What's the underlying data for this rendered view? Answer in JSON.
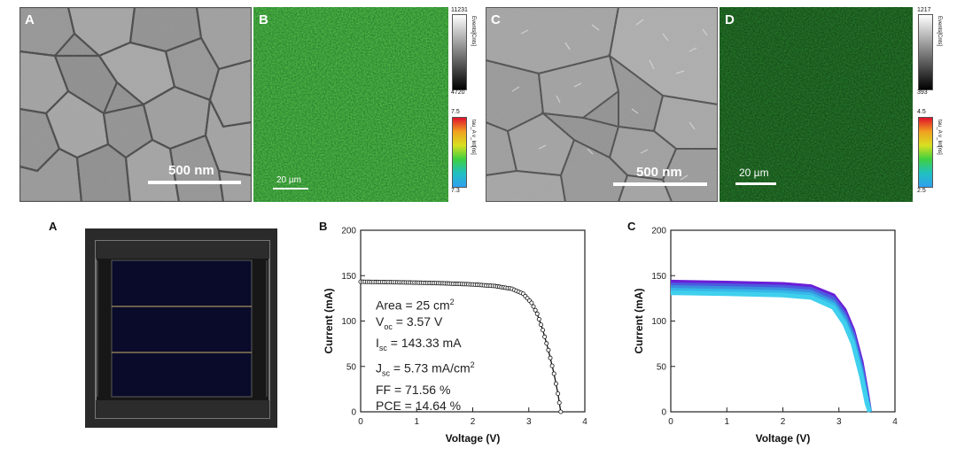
{
  "top": {
    "panels": [
      {
        "label": "A",
        "scale": "500 nm"
      },
      {
        "label": "B",
        "scale": "20 µm",
        "cbar_gray": {
          "title": "Events[Cnts]",
          "max": "11231",
          "min": "4720"
        },
        "cbar_color": {
          "title": "tau_A v_Int[ns]",
          "max": "7.5",
          "min": "7.3"
        }
      },
      {
        "label": "C",
        "scale": "500 nm"
      },
      {
        "label": "D",
        "scale": "20 µm",
        "cbar_gray": {
          "title": "Events[Cnts]",
          "max": "1217",
          "min": "393"
        },
        "cbar_color": {
          "title": "tau_A v_Int[ns]",
          "max": "4.5",
          "min": "2.5"
        }
      }
    ]
  },
  "bottom": {
    "labels": [
      "A",
      "B",
      "C"
    ],
    "annotations": {
      "area": "Area = 25 cm",
      "area_sup": "2",
      "voc_main": "V",
      "voc_sub": "oc",
      "voc_val": " = 3.57 V",
      "isc_main": "I",
      "isc_sub": "sc",
      "isc_val": " = 143.33 mA",
      "jsc_main": "J",
      "jsc_sub": "sc",
      "jsc_val": " = 5.73 mA/cm",
      "jsc_sup": "2",
      "ff": "FF = 71.56 %",
      "pce": "PCE = 14.64 %"
    }
  },
  "chart_data": [
    {
      "type": "line",
      "panel": "B",
      "xlabel": "Voltage (V)",
      "ylabel": "Current (mA)",
      "xlim": [
        0,
        4
      ],
      "ylim": [
        0,
        200
      ],
      "xticks": [
        0,
        1,
        2,
        3,
        4
      ],
      "yticks": [
        0,
        50,
        100,
        150,
        200
      ],
      "series": [
        {
          "x": [
            0,
            0.5,
            1.0,
            1.5,
            2.0,
            2.4,
            2.7,
            2.9,
            3.05,
            3.15,
            3.25,
            3.35,
            3.45,
            3.52,
            3.57
          ],
          "y": [
            143.3,
            142.8,
            142.3,
            141.5,
            140.3,
            138.5,
            135.5,
            130,
            120,
            108,
            90,
            68,
            42,
            20,
            0
          ]
        }
      ]
    },
    {
      "type": "line",
      "panel": "C",
      "xlabel": "Voltage (V)",
      "ylabel": "Current (mA)",
      "xlim": [
        0,
        4
      ],
      "ylim": [
        0,
        200
      ],
      "xticks": [
        0,
        1,
        2,
        3,
        4
      ],
      "yticks": [
        0,
        50,
        100,
        150,
        200
      ],
      "series": [
        {
          "x": [
            0,
            1.0,
            2.0,
            2.5,
            2.9,
            3.1,
            3.25,
            3.4,
            3.5,
            3.55
          ],
          "y": [
            143,
            142,
            140.5,
            138,
            128,
            112,
            90,
            55,
            20,
            0
          ]
        },
        {
          "x": [
            0,
            1.0,
            2.0,
            2.5,
            2.9,
            3.1,
            3.25,
            3.4,
            3.5,
            3.55
          ],
          "y": [
            140,
            139,
            137.5,
            135,
            125,
            108,
            86,
            50,
            17,
            0
          ]
        },
        {
          "x": [
            0,
            1.0,
            2.0,
            2.5,
            2.9,
            3.1,
            3.25,
            3.4,
            3.5,
            3.55
          ],
          "y": [
            137,
            136,
            134.5,
            132,
            121,
            104,
            82,
            46,
            14,
            0
          ]
        },
        {
          "x": [
            0,
            1.0,
            2.0,
            2.5,
            2.9,
            3.1,
            3.25,
            3.4,
            3.5,
            3.55
          ],
          "y": [
            134,
            133,
            131.5,
            129,
            118,
            100,
            78,
            42,
            11,
            0
          ]
        },
        {
          "x": [
            0,
            1.0,
            2.0,
            2.5,
            2.9,
            3.1,
            3.25,
            3.4,
            3.5,
            3.55
          ],
          "y": [
            131,
            130,
            128.5,
            126,
            115,
            97,
            75,
            39,
            9,
            0
          ]
        }
      ],
      "colors": [
        "#6a1fd6",
        "#4b5be0",
        "#3b8fe0",
        "#35b8e8",
        "#40d0ee"
      ]
    }
  ]
}
